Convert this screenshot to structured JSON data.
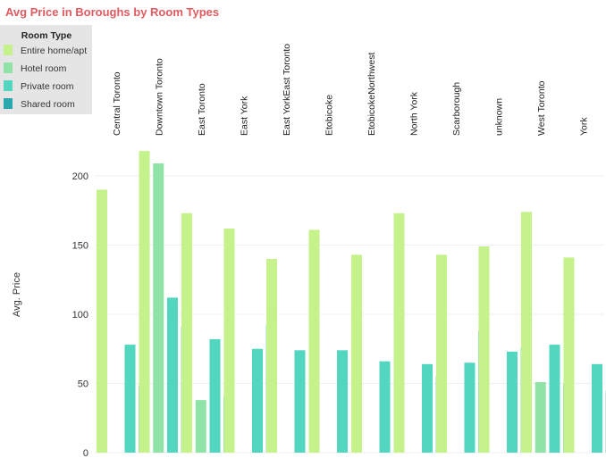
{
  "chart_data": {
    "type": "bar",
    "title": "Avg Price in Boroughs by Room Types",
    "title_color": "#e05a5f",
    "ylabel": "Avg. Price",
    "xlabel": "",
    "ylim": [
      0,
      220
    ],
    "yticks": [
      0,
      50,
      100,
      150,
      200
    ],
    "grid": true,
    "legend": {
      "title": "Room Type",
      "placement": "top-left",
      "entries": [
        {
          "name": "Entire home/apt",
          "color": "#c5f28a"
        },
        {
          "name": "Hotel room",
          "color": "#8fe3a6"
        },
        {
          "name": "Private room",
          "color": "#52d6bf"
        },
        {
          "name": "Shared room",
          "color": "#2aa8b0"
        }
      ]
    },
    "categories": [
      "Central Toronto",
      "Downtown Toronto",
      "East Toronto",
      "East York",
      "East YorkEast Toronto",
      "Etobicoke",
      "EtobicokeNorthwest",
      "North York",
      "Scarborough",
      "unknown",
      "West Toronto",
      "York"
    ],
    "bars": [
      {
        "category": 0,
        "series": "Entire home/apt",
        "value": 190
      },
      {
        "category": 0,
        "series": "Private room",
        "value": 78
      },
      {
        "category": 0,
        "series": "Shared room",
        "value": 48
      },
      {
        "category": 1,
        "series": "Entire home/apt",
        "value": 218
      },
      {
        "category": 1,
        "series": "Hotel room",
        "value": 209
      },
      {
        "category": 1,
        "series": "Private room",
        "value": 112
      },
      {
        "category": 1,
        "series": "Shared room",
        "value": 91
      },
      {
        "category": 2,
        "series": "Entire home/apt",
        "value": 173
      },
      {
        "category": 2,
        "series": "Hotel room",
        "value": 38
      },
      {
        "category": 2,
        "series": "Private room",
        "value": 82
      },
      {
        "category": 2,
        "series": "Shared room",
        "value": 41
      },
      {
        "category": 3,
        "series": "Entire home/apt",
        "value": 162
      },
      {
        "category": 3,
        "series": "Private room",
        "value": 75
      },
      {
        "category": 3,
        "series": "Shared room",
        "value": 92
      },
      {
        "category": 4,
        "series": "Entire home/apt",
        "value": 140
      },
      {
        "category": 4,
        "series": "Private room",
        "value": 74
      },
      {
        "category": 5,
        "series": "Entire home/apt",
        "value": 161
      },
      {
        "category": 5,
        "series": "Private room",
        "value": 74
      },
      {
        "category": 6,
        "series": "Entire home/apt",
        "value": 143
      },
      {
        "category": 6,
        "series": "Private room",
        "value": 66
      },
      {
        "category": 7,
        "series": "Entire home/apt",
        "value": 173
      },
      {
        "category": 7,
        "series": "Private room",
        "value": 64
      },
      {
        "category": 7,
        "series": "Shared room",
        "value": 55
      },
      {
        "category": 8,
        "series": "Entire home/apt",
        "value": 143
      },
      {
        "category": 8,
        "series": "Private room",
        "value": 65
      },
      {
        "category": 8,
        "series": "Shared room",
        "value": 88
      },
      {
        "category": 9,
        "series": "Entire home/apt",
        "value": 149
      },
      {
        "category": 9,
        "series": "Private room",
        "value": 73
      },
      {
        "category": 9,
        "series": "Shared room",
        "value": 76
      },
      {
        "category": 10,
        "series": "Entire home/apt",
        "value": 174
      },
      {
        "category": 10,
        "series": "Hotel room",
        "value": 51
      },
      {
        "category": 10,
        "series": "Private room",
        "value": 78
      },
      {
        "category": 10,
        "series": "Shared room",
        "value": 50
      },
      {
        "category": 11,
        "series": "Entire home/apt",
        "value": 141
      },
      {
        "category": 11,
        "series": "Private room",
        "value": 64
      },
      {
        "category": 11,
        "series": "Shared room",
        "value": 45
      }
    ]
  }
}
